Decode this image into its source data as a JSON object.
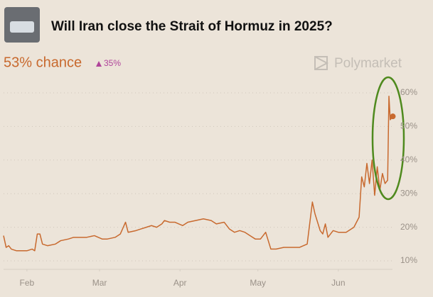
{
  "title": "Will Iran close the Strait of Hormuz in 2025?",
  "chance": "53% chance",
  "change": "35%",
  "brand": "Polymarket",
  "chart_data": {
    "type": "line",
    "x": [
      23,
      24,
      25,
      26,
      28,
      32,
      34,
      35,
      36,
      37,
      38,
      40,
      43,
      45,
      48,
      50,
      55,
      58,
      61,
      63,
      66,
      68,
      70,
      71,
      74,
      76,
      78,
      80,
      82,
      84,
      85,
      87,
      89,
      92,
      94,
      97,
      100,
      103,
      105,
      108,
      110,
      112,
      114,
      116,
      118,
      120,
      122,
      124,
      126,
      128,
      131,
      134,
      137,
      140,
      142,
      143,
      145,
      146,
      147,
      148,
      150,
      152,
      155,
      157,
      158,
      160,
      161,
      162,
      163,
      164,
      165,
      166,
      167,
      168,
      169,
      170,
      171,
      171.5,
      172,
      173
    ],
    "series": [
      {
        "color": "#c8692e",
        "values": [
          17.5,
          14,
          14.5,
          13.5,
          13,
          13,
          13.5,
          13,
          18,
          18,
          15,
          14.5,
          15,
          16,
          16.5,
          17,
          17,
          17.5,
          16.5,
          16.5,
          17,
          18,
          21.5,
          18.5,
          19,
          19.5,
          20,
          20.5,
          20,
          21,
          22,
          21.5,
          21.5,
          20.5,
          21.5,
          22,
          22.5,
          22,
          21,
          21.5,
          19.5,
          18.5,
          19,
          18.5,
          17.5,
          16.5,
          16.5,
          18.5,
          13.5,
          13.5,
          14,
          14,
          14,
          15,
          27.5,
          24,
          19,
          18,
          21,
          17,
          19,
          18.5,
          18.5,
          19.5,
          20,
          23,
          35,
          32,
          39,
          33,
          40,
          29.5,
          38,
          31,
          36,
          33,
          34,
          59,
          52,
          53
        ]
      }
    ],
    "xlim": [
      23,
      173
    ],
    "xticks": [
      {
        "value": 32,
        "label": "Feb"
      },
      {
        "value": 60,
        "label": "Mar"
      },
      {
        "value": 91,
        "label": "Apr"
      },
      {
        "value": 121,
        "label": "May"
      },
      {
        "value": 152,
        "label": "Jun"
      }
    ],
    "ylim": [
      7.5,
      62
    ],
    "yticks": [
      {
        "value": 10,
        "label": "10%"
      },
      {
        "value": 20,
        "label": "20%"
      },
      {
        "value": 30,
        "label": "30%"
      },
      {
        "value": 40,
        "label": "40%"
      },
      {
        "value": 50,
        "label": "50%"
      },
      {
        "value": 60,
        "label": "60%"
      }
    ],
    "grid": true
  }
}
